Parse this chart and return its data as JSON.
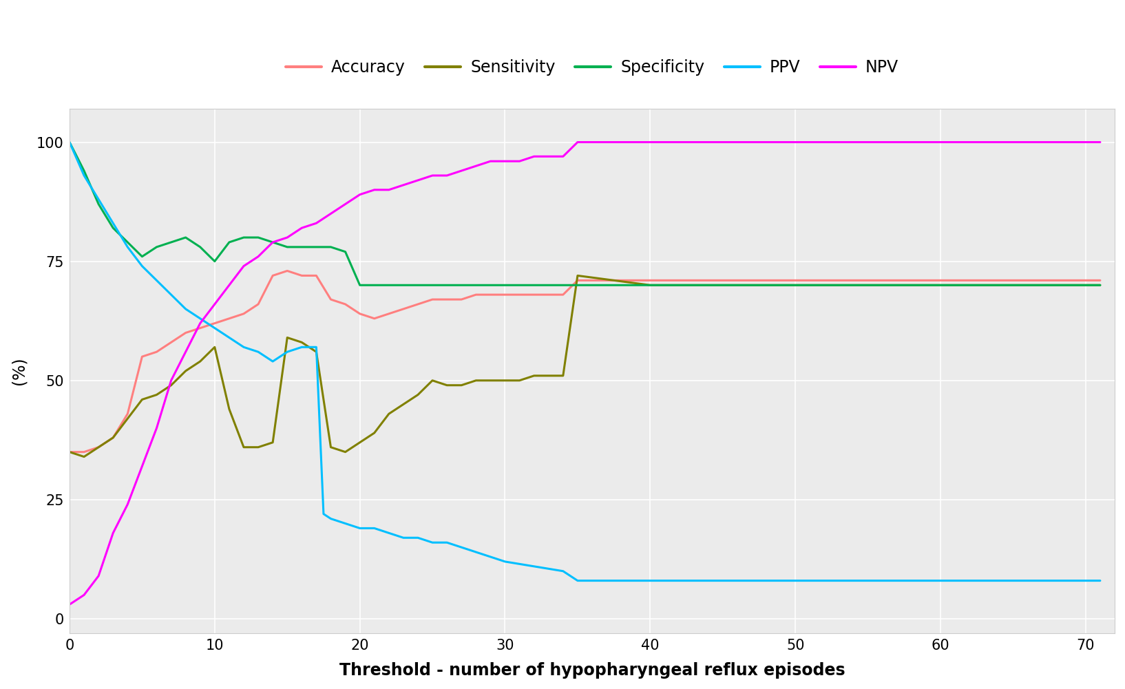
{
  "xlabel": "Threshold - number of hypopharyngeal reflux episodes",
  "ylabel": "(%)",
  "xlim": [
    0,
    72
  ],
  "ylim": [
    -3,
    107
  ],
  "xticks": [
    0,
    10,
    20,
    30,
    40,
    50,
    60,
    70
  ],
  "yticks": [
    0,
    25,
    50,
    75,
    100
  ],
  "background_color": "#ebebeb",
  "grid_color": "#ffffff",
  "series": {
    "Accuracy": {
      "color": "#FF7F7F",
      "lw": 2.2,
      "x": [
        0,
        1,
        2,
        3,
        4,
        5,
        6,
        7,
        8,
        9,
        10,
        11,
        12,
        13,
        14,
        15,
        16,
        17,
        18,
        19,
        20,
        21,
        22,
        23,
        24,
        25,
        26,
        27,
        28,
        29,
        30,
        31,
        32,
        33,
        34,
        35,
        36,
        37,
        40,
        45,
        50,
        55,
        60,
        65,
        70,
        71
      ],
      "y": [
        35,
        35,
        36,
        38,
        43,
        55,
        56,
        58,
        60,
        61,
        62,
        63,
        64,
        66,
        72,
        73,
        72,
        72,
        67,
        66,
        64,
        63,
        64,
        65,
        66,
        67,
        67,
        67,
        68,
        68,
        68,
        68,
        68,
        68,
        68,
        71,
        71,
        71,
        71,
        71,
        71,
        71,
        71,
        71,
        71,
        71
      ]
    },
    "Sensitivity": {
      "color": "#808000",
      "lw": 2.2,
      "x": [
        0,
        1,
        2,
        3,
        4,
        5,
        6,
        7,
        8,
        9,
        10,
        11,
        12,
        13,
        14,
        15,
        16,
        17,
        18,
        19,
        20,
        21,
        22,
        23,
        24,
        25,
        26,
        27,
        28,
        29,
        30,
        31,
        32,
        33,
        34,
        35,
        40,
        45,
        50,
        55,
        60,
        65,
        70,
        71
      ],
      "y": [
        35,
        34,
        36,
        38,
        42,
        46,
        47,
        49,
        52,
        54,
        57,
        44,
        36,
        36,
        37,
        59,
        58,
        56,
        36,
        35,
        37,
        39,
        43,
        45,
        47,
        50,
        49,
        49,
        50,
        50,
        50,
        50,
        51,
        51,
        51,
        72,
        70,
        70,
        70,
        70,
        70,
        70,
        70,
        70
      ]
    },
    "Specificity": {
      "color": "#00B050",
      "lw": 2.2,
      "x": [
        0,
        1,
        2,
        3,
        4,
        5,
        6,
        7,
        8,
        9,
        10,
        11,
        12,
        13,
        14,
        15,
        16,
        17,
        18,
        19,
        20,
        21,
        22,
        23,
        24,
        25,
        26,
        27,
        28,
        29,
        30,
        35,
        40,
        45,
        50,
        55,
        60,
        65,
        70,
        71
      ],
      "y": [
        100,
        94,
        87,
        82,
        79,
        76,
        78,
        79,
        80,
        78,
        75,
        79,
        80,
        80,
        79,
        78,
        78,
        78,
        78,
        77,
        70,
        70,
        70,
        70,
        70,
        70,
        70,
        70,
        70,
        70,
        70,
        70,
        70,
        70,
        70,
        70,
        70,
        70,
        70,
        70
      ]
    },
    "PPV": {
      "color": "#00BFFF",
      "lw": 2.2,
      "x": [
        0,
        1,
        2,
        3,
        4,
        5,
        6,
        7,
        8,
        9,
        10,
        11,
        12,
        13,
        14,
        15,
        16,
        17,
        17.5,
        18,
        19,
        20,
        21,
        22,
        23,
        24,
        25,
        26,
        27,
        28,
        30,
        32,
        34,
        35,
        36,
        40,
        45,
        50,
        55,
        60,
        65,
        70,
        71
      ],
      "y": [
        100,
        93,
        88,
        83,
        78,
        74,
        71,
        68,
        65,
        63,
        61,
        59,
        57,
        56,
        54,
        56,
        57,
        57,
        22,
        21,
        20,
        19,
        19,
        18,
        17,
        17,
        16,
        16,
        15,
        14,
        12,
        11,
        10,
        8,
        8,
        8,
        8,
        8,
        8,
        8,
        8,
        8,
        8
      ]
    },
    "NPV": {
      "color": "#FF00FF",
      "lw": 2.2,
      "x": [
        0,
        1,
        2,
        3,
        4,
        5,
        6,
        7,
        8,
        9,
        10,
        11,
        12,
        13,
        14,
        15,
        16,
        17,
        18,
        19,
        20,
        21,
        22,
        23,
        24,
        25,
        26,
        27,
        28,
        29,
        30,
        31,
        32,
        33,
        34,
        35,
        40,
        45,
        50,
        55,
        60,
        65,
        70,
        71
      ],
      "y": [
        3,
        5,
        9,
        18,
        24,
        32,
        40,
        50,
        56,
        62,
        66,
        70,
        74,
        76,
        79,
        80,
        82,
        83,
        85,
        87,
        89,
        90,
        90,
        91,
        92,
        93,
        93,
        94,
        95,
        96,
        96,
        96,
        97,
        97,
        97,
        100,
        100,
        100,
        100,
        100,
        100,
        100,
        100,
        100
      ]
    }
  },
  "legend_order": [
    "Accuracy",
    "Sensitivity",
    "Specificity",
    "PPV",
    "NPV"
  ],
  "font_size": 17,
  "tick_font_size": 15
}
